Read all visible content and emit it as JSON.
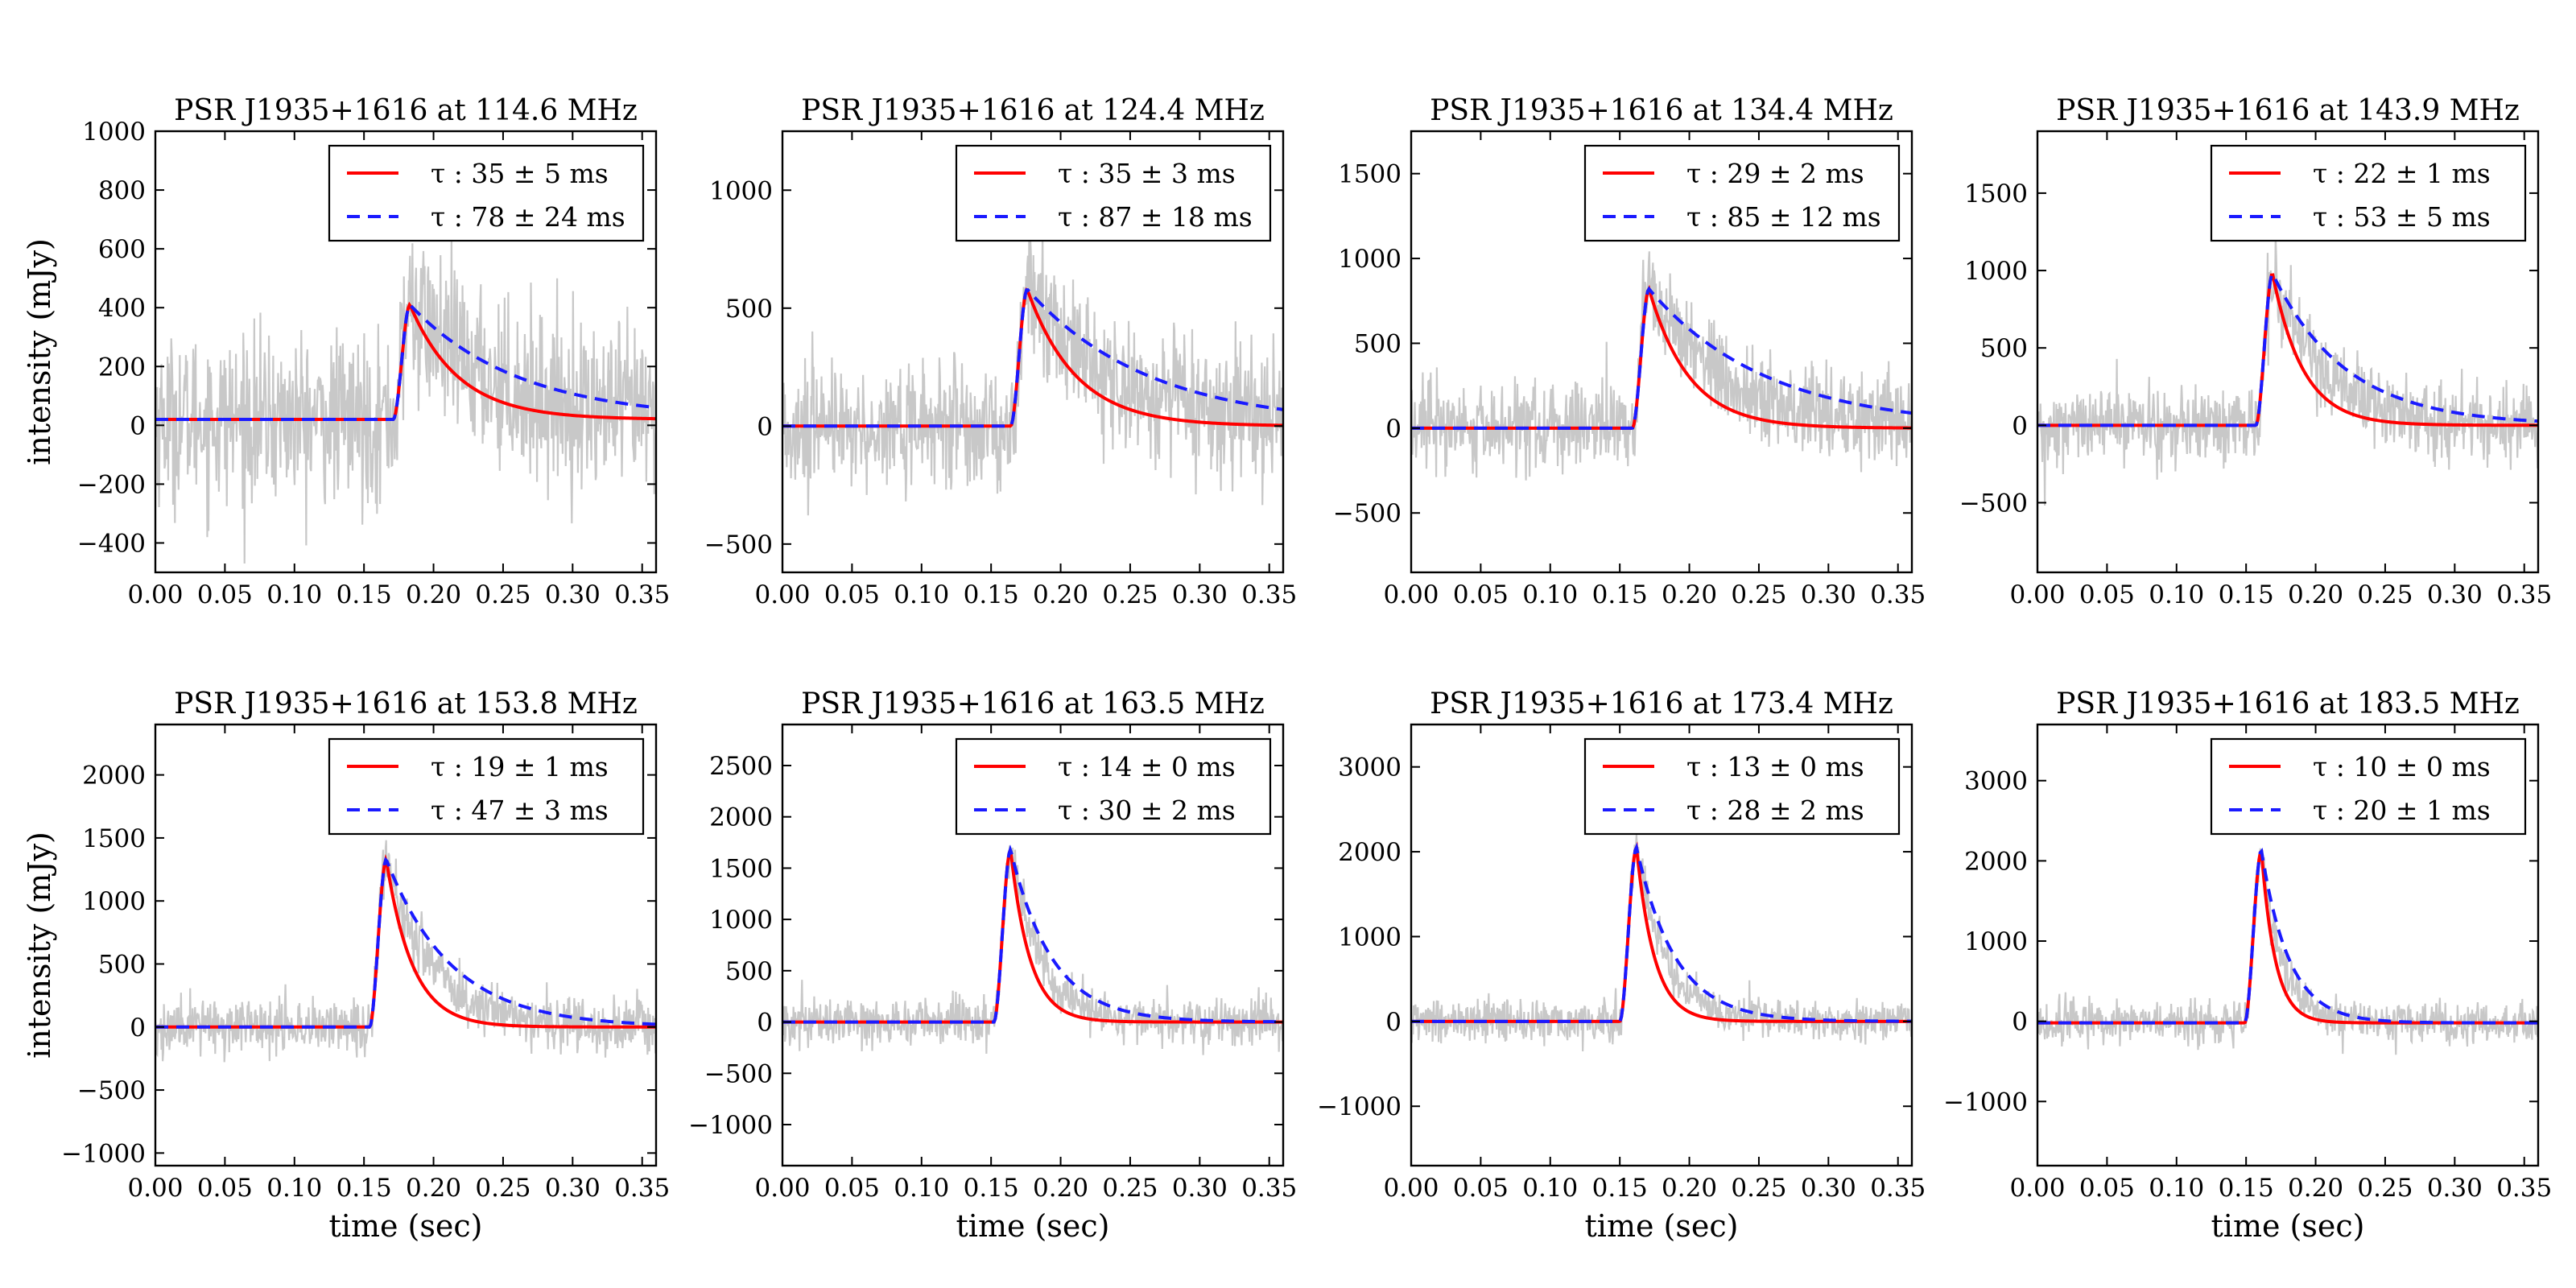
{
  "colors": {
    "data": "#c8c8c8",
    "fit_red": "#ff0000",
    "fit_blue": "#1a1aff",
    "axes": "#000000"
  },
  "shared": {
    "xlabel": "time (sec)",
    "ylabel": "intensity (mJy)",
    "xlim": [
      0.0,
      0.36
    ],
    "xticks": [
      "0.00",
      "0.05",
      "0.10",
      "0.15",
      "0.20",
      "0.25",
      "0.30",
      "0.35"
    ],
    "xtick_values": [
      0.0,
      0.05,
      0.1,
      0.15,
      0.2,
      0.25,
      0.3,
      0.35
    ],
    "legend_location": "top-right"
  },
  "chart_data": [
    {
      "type": "line",
      "title": "PSR J1935+1616 at 114.6 MHz",
      "ylim": [
        -500,
        1000
      ],
      "yticks": [
        -400,
        -200,
        0,
        200,
        400,
        600,
        800,
        1000
      ],
      "peak": 390,
      "peak_time": 0.183,
      "noise": 140,
      "baseline": 20,
      "series": [
        {
          "name": "τ : 35 ± 5 ms",
          "tau_ms": 35,
          "color": "red",
          "style": "solid"
        },
        {
          "name": "τ : 78 ± 24 ms",
          "tau_ms": 78,
          "color": "blue",
          "style": "dashed"
        }
      ],
      "show_xlabel": false,
      "show_ylabel": true
    },
    {
      "type": "line",
      "title": "PSR J1935+1616 at 124.4 MHz",
      "ylim": [
        -620,
        1250
      ],
      "yticks": [
        -500,
        0,
        500,
        1000
      ],
      "peak": 580,
      "peak_time": 0.176,
      "noise": 130,
      "baseline": 0,
      "series": [
        {
          "name": "τ : 35 ± 3 ms",
          "tau_ms": 35,
          "color": "red",
          "style": "solid"
        },
        {
          "name": "τ : 87 ± 18 ms",
          "tau_ms": 87,
          "color": "blue",
          "style": "dashed"
        }
      ],
      "show_xlabel": false,
      "show_ylabel": false
    },
    {
      "type": "line",
      "title": "PSR J1935+1616 at 134.4 MHz",
      "ylim": [
        -850,
        1750
      ],
      "yticks": [
        -500,
        0,
        500,
        1000,
        1500
      ],
      "peak": 820,
      "peak_time": 0.171,
      "noise": 130,
      "baseline": 0,
      "series": [
        {
          "name": "τ : 29 ± 2 ms",
          "tau_ms": 29,
          "color": "red",
          "style": "solid"
        },
        {
          "name": "τ : 85 ± 12 ms",
          "tau_ms": 85,
          "color": "blue",
          "style": "dashed"
        }
      ],
      "show_xlabel": false,
      "show_ylabel": false
    },
    {
      "type": "line",
      "title": "PSR J1935+1616 at 143.9 MHz",
      "ylim": [
        -950,
        1900
      ],
      "yticks": [
        -500,
        0,
        500,
        1000,
        1500
      ],
      "peak": 980,
      "peak_time": 0.169,
      "noise": 120,
      "baseline": 0,
      "series": [
        {
          "name": "τ : 22 ± 1 ms",
          "tau_ms": 22,
          "color": "red",
          "style": "solid"
        },
        {
          "name": "τ : 53 ± 5 ms",
          "tau_ms": 53,
          "color": "blue",
          "style": "dashed"
        }
      ],
      "show_xlabel": false,
      "show_ylabel": false
    },
    {
      "type": "line",
      "title": "PSR J1935+1616 at 153.8 MHz",
      "ylim": [
        -1100,
        2400
      ],
      "yticks": [
        -1000,
        -500,
        0,
        500,
        1000,
        1500,
        2000
      ],
      "peak": 1330,
      "peak_time": 0.166,
      "noise": 110,
      "baseline": 0,
      "series": [
        {
          "name": "τ : 19 ± 1 ms",
          "tau_ms": 19,
          "color": "red",
          "style": "solid"
        },
        {
          "name": "τ : 47 ± 3 ms",
          "tau_ms": 47,
          "color": "blue",
          "style": "dashed"
        }
      ],
      "show_xlabel": true,
      "show_ylabel": true
    },
    {
      "type": "line",
      "title": "PSR J1935+1616 at 163.5 MHz",
      "ylim": [
        -1400,
        2900
      ],
      "yticks": [
        -1000,
        -500,
        0,
        500,
        1000,
        1500,
        2000,
        2500
      ],
      "peak": 1680,
      "peak_time": 0.164,
      "noise": 110,
      "baseline": 0,
      "series": [
        {
          "name": "τ : 14 ± 0 ms",
          "tau_ms": 14,
          "color": "red",
          "style": "solid"
        },
        {
          "name": "τ : 30 ± 2 ms",
          "tau_ms": 30,
          "color": "blue",
          "style": "dashed"
        }
      ],
      "show_xlabel": true,
      "show_ylabel": false
    },
    {
      "type": "line",
      "title": "PSR J1935+1616 at 173.4 MHz",
      "ylim": [
        -1700,
        3500
      ],
      "yticks": [
        -1000,
        0,
        1000,
        2000,
        3000
      ],
      "peak": 2050,
      "peak_time": 0.162,
      "noise": 120,
      "baseline": 0,
      "series": [
        {
          "name": "τ : 13 ± 0 ms",
          "tau_ms": 13,
          "color": "red",
          "style": "solid"
        },
        {
          "name": "τ : 28 ± 2 ms",
          "tau_ms": 28,
          "color": "blue",
          "style": "dashed"
        }
      ],
      "show_xlabel": true,
      "show_ylabel": false
    },
    {
      "type": "line",
      "title": "PSR J1935+1616 at 183.5 MHz",
      "ylim": [
        -1800,
        3700
      ],
      "yticks": [
        -1000,
        0,
        1000,
        2000,
        3000
      ],
      "peak": 2150,
      "peak_time": 0.161,
      "noise": 130,
      "baseline": -20,
      "series": [
        {
          "name": "τ : 10 ± 0 ms",
          "tau_ms": 10,
          "color": "red",
          "style": "solid"
        },
        {
          "name": "τ : 20 ± 1 ms",
          "tau_ms": 20,
          "color": "blue",
          "style": "dashed"
        }
      ],
      "show_xlabel": true,
      "show_ylabel": false
    }
  ]
}
